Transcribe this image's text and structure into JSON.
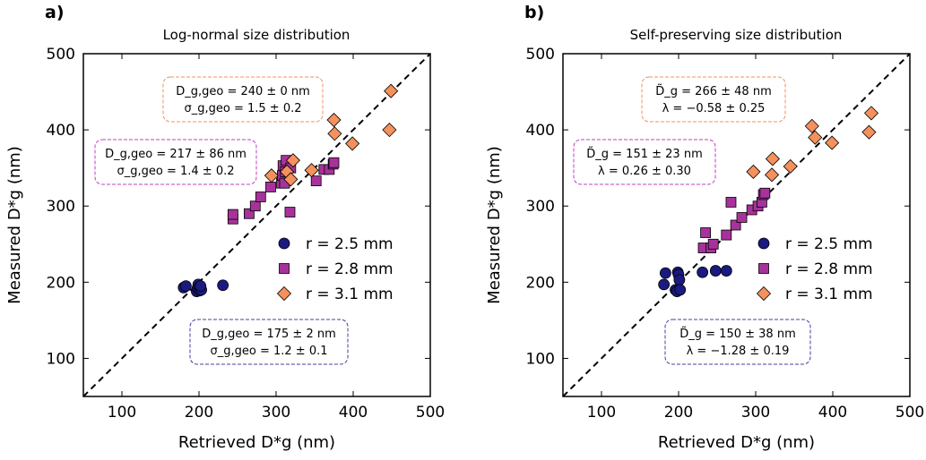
{
  "chart_data": [
    {
      "type": "scatter",
      "panel_label": "a)",
      "title": "Log-normal size distribution",
      "xlabel": "Retrieved D*g (nm)",
      "ylabel": "Measured D*g (nm)",
      "xlim": [
        50,
        500
      ],
      "ylim": [
        50,
        500
      ],
      "xticks": [
        100,
        200,
        300,
        400,
        500
      ],
      "yticks": [
        100,
        200,
        300,
        400,
        500
      ],
      "reference_line": "y = x (dashed)",
      "legend_position": "lower-right",
      "series": [
        {
          "name": "r = 2.5 mm",
          "marker": "circle",
          "color": "#1a1a80",
          "points": [
            [
              180,
              193
            ],
            [
              183,
              195
            ],
            [
              197,
              188
            ],
            [
              198,
              192
            ],
            [
              199,
              197
            ],
            [
              200,
              193
            ],
            [
              201,
              189
            ],
            [
              203,
              190
            ],
            [
              202,
              195
            ],
            [
              231,
              196
            ]
          ]
        },
        {
          "name": "r = 2.8 mm",
          "marker": "square",
          "color": "#a8329c",
          "points": [
            [
              244,
              283
            ],
            [
              244,
              289
            ],
            [
              265,
              290
            ],
            [
              273,
              300
            ],
            [
              280,
              312
            ],
            [
              293,
              325
            ],
            [
              307,
              330
            ],
            [
              308,
              340
            ],
            [
              309,
              353
            ],
            [
              311,
              330
            ],
            [
              312,
              345
            ],
            [
              313,
              360
            ],
            [
              318,
              292
            ],
            [
              319,
              350
            ],
            [
              352,
              333
            ],
            [
              362,
              348
            ],
            [
              369,
              348
            ],
            [
              374,
              355
            ],
            [
              375,
              357
            ]
          ]
        },
        {
          "name": "r = 3.1 mm",
          "marker": "diamond",
          "color": "#f4915c",
          "points": [
            [
              294,
              340
            ],
            [
              314,
              345
            ],
            [
              319,
              335
            ],
            [
              322,
              360
            ],
            [
              346,
              347
            ],
            [
              375,
              413
            ],
            [
              376,
              395
            ],
            [
              399,
              382
            ],
            [
              447,
              400
            ],
            [
              449,
              451
            ]
          ]
        }
      ],
      "annotations": [
        {
          "line1": "D_g,geo = 240 ± 0 nm",
          "line2": "σ_g,geo = 1.5 ± 0.2",
          "color": "#f4915c"
        },
        {
          "line1": "D_g,geo = 217 ± 86 nm",
          "line2": "σ_g,geo = 1.4 ± 0.2",
          "color": "#c040c0"
        },
        {
          "line1": "D_g,geo = 175 ± 2 nm",
          "line2": "σ_g,geo = 1.2 ± 0.1",
          "color": "#4040a0"
        }
      ]
    },
    {
      "type": "scatter",
      "panel_label": "b)",
      "title": "Self-preserving size distribution",
      "xlabel": "Retrieved D*g (nm)",
      "ylabel": "Measured D*g (nm)",
      "xlim": [
        50,
        500
      ],
      "ylim": [
        50,
        500
      ],
      "xticks": [
        100,
        200,
        300,
        400,
        500
      ],
      "yticks": [
        100,
        200,
        300,
        400,
        500
      ],
      "reference_line": "y = x (dashed)",
      "legend_position": "lower-right",
      "series": [
        {
          "name": "r = 2.5 mm",
          "marker": "circle",
          "color": "#1a1a80",
          "points": [
            [
              181,
              197
            ],
            [
              183,
              212
            ],
            [
              196,
              190
            ],
            [
              198,
              188
            ],
            [
              199,
              213
            ],
            [
              200,
              210
            ],
            [
              201,
              203
            ],
            [
              202,
              190
            ],
            [
              231,
              213
            ],
            [
              248,
              215
            ],
            [
              262,
              215
            ]
          ]
        },
        {
          "name": "r = 2.8 mm",
          "marker": "square",
          "color": "#a8329c",
          "points": [
            [
              232,
              245
            ],
            [
              235,
              265
            ],
            [
              242,
              245
            ],
            [
              245,
              250
            ],
            [
              262,
              262
            ],
            [
              268,
              305
            ],
            [
              274,
              275
            ],
            [
              282,
              285
            ],
            [
              295,
              295
            ],
            [
              303,
              300
            ],
            [
              308,
              305
            ],
            [
              310,
              315
            ],
            [
              312,
              317
            ]
          ]
        },
        {
          "name": "r = 3.1 mm",
          "marker": "diamond",
          "color": "#f4915c",
          "points": [
            [
              297,
              345
            ],
            [
              321,
              341
            ],
            [
              322,
              362
            ],
            [
              345,
              352
            ],
            [
              373,
              405
            ],
            [
              377,
              390
            ],
            [
              399,
              383
            ],
            [
              447,
              397
            ],
            [
              450,
              422
            ]
          ]
        }
      ],
      "annotations": [
        {
          "line1": "D̃_g = 266 ± 48 nm",
          "line2": "λ = −0.58 ± 0.25",
          "color": "#f4915c"
        },
        {
          "line1": "D̃_g = 151 ± 23 nm",
          "line2": "λ = 0.26 ± 0.30",
          "color": "#c040c0"
        },
        {
          "line1": "D̃_g = 150 ± 38 nm",
          "line2": "λ = −1.28 ± 0.19",
          "color": "#4040a0"
        }
      ]
    }
  ]
}
